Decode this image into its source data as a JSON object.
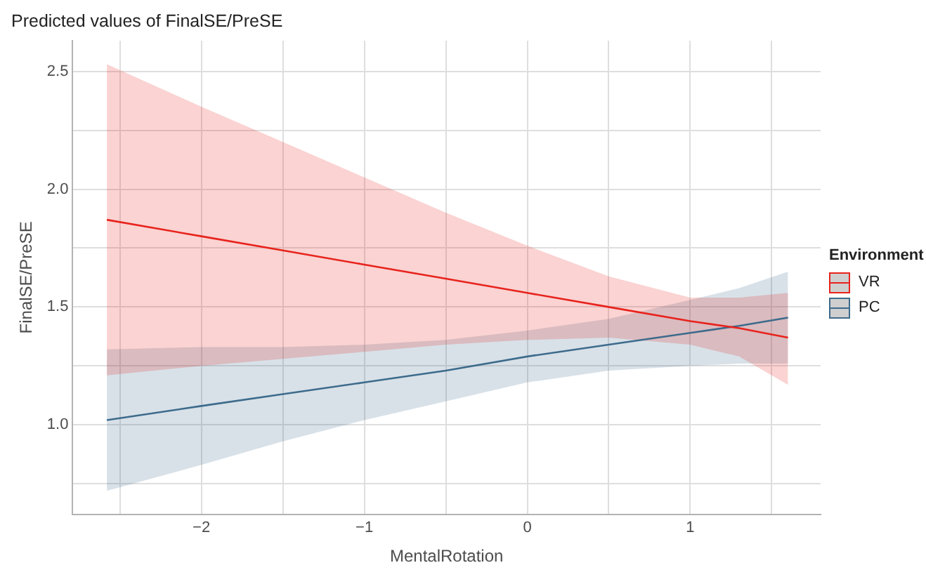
{
  "chart_data": {
    "type": "line",
    "title": "Predicted values of FinalSE/PreSE",
    "xlabel": "MentalRotation",
    "ylabel": "FinalSE/PreSE",
    "legend_title": "Environment",
    "legend": "right",
    "grid": true,
    "x": [
      -2.58,
      -2,
      -1.5,
      -1,
      -0.5,
      0,
      0.5,
      1,
      1.3,
      1.6
    ],
    "xlim": [
      -2.79,
      1.8
    ],
    "xticks": [
      {
        "value": -2.5,
        "label": null
      },
      {
        "value": -2,
        "label": "−2"
      },
      {
        "value": -1.5,
        "label": null
      },
      {
        "value": -1,
        "label": "−1"
      },
      {
        "value": -0.5,
        "label": null
      },
      0,
      {
        "value": 0.5,
        "label": null
      },
      1,
      {
        "value": 1.5,
        "label": null
      }
    ],
    "ylim": [
      0.62,
      2.63
    ],
    "yticks": [
      {
        "value": 0.75,
        "label": null
      },
      {
        "value": 1,
        "label": "1.0"
      },
      {
        "value": 1.25,
        "label": null
      },
      {
        "value": 1.5,
        "label": "1.5"
      },
      {
        "value": 1.75,
        "label": null
      },
      {
        "value": 2,
        "label": "2.0"
      },
      {
        "value": 2.25,
        "label": null
      },
      {
        "value": 2.5,
        "label": "2.5"
      }
    ],
    "series": [
      {
        "name": "VR",
        "color": "#e8231d",
        "values": [
          1.87,
          1.8,
          1.74,
          1.68,
          1.62,
          1.56,
          1.5,
          1.44,
          1.41,
          1.37
        ],
        "upper": [
          2.53,
          2.35,
          2.2,
          2.05,
          1.9,
          1.76,
          1.63,
          1.54,
          1.54,
          1.56
        ],
        "lower": [
          1.21,
          1.25,
          1.28,
          1.31,
          1.34,
          1.36,
          1.37,
          1.34,
          1.29,
          1.17
        ]
      },
      {
        "name": "PC",
        "color": "#3d6b8c",
        "values": [
          1.02,
          1.08,
          1.13,
          1.18,
          1.23,
          1.29,
          1.34,
          1.39,
          1.42,
          1.455
        ],
        "upper": [
          1.32,
          1.33,
          1.33,
          1.34,
          1.36,
          1.4,
          1.45,
          1.53,
          1.58,
          1.65
        ],
        "lower": [
          0.72,
          0.83,
          0.93,
          1.02,
          1.1,
          1.18,
          1.23,
          1.25,
          1.26,
          1.26
        ]
      }
    ]
  }
}
